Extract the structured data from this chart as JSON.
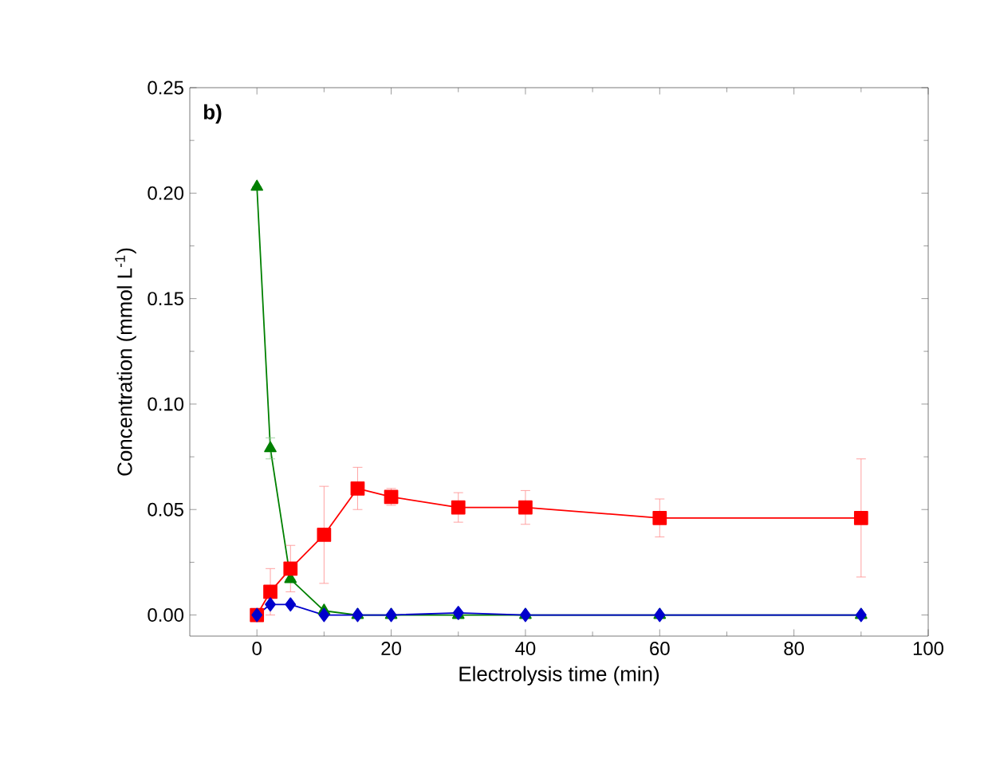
{
  "chart_data": {
    "type": "line",
    "xlabel": "Electrolysis time (min)",
    "ylabel": "Concentration (mmol L$^{-1}$)",
    "annotations": [
      "b)"
    ],
    "x": [
      0,
      2,
      5,
      10,
      15,
      20,
      30,
      40,
      60,
      90
    ],
    "series": [
      {
        "color": "#008000",
        "marker": "triangle",
        "values": [
          0.203,
          0.079,
          0.017,
          0.002,
          0,
          0,
          0,
          0,
          0,
          0
        ],
        "errors": [
          null,
          0.005,
          null,
          null,
          null,
          null,
          null,
          null,
          null,
          null
        ]
      },
      {
        "color": "#ff0000",
        "marker": "square",
        "values": [
          0,
          0.011,
          0.022,
          0.038,
          0.06,
          0.056,
          0.051,
          0.051,
          0.046,
          0.046
        ],
        "errors": [
          null,
          0.011,
          0.011,
          0.023,
          0.01,
          0.004,
          0.007,
          0.008,
          0.009,
          0.028
        ]
      },
      {
        "color": "#0000cc",
        "marker": "diamond",
        "values": [
          0,
          0.005,
          0.005,
          0,
          0,
          0,
          0.001,
          0,
          0,
          0
        ]
      }
    ],
    "xlim": [
      -10,
      100
    ],
    "ylim": [
      -0.01,
      0.25
    ],
    "xticks": [
      0,
      20,
      40,
      60,
      80,
      100
    ],
    "yticks": [
      {
        "value": 0,
        "label": "0.00"
      },
      {
        "value": 0.05,
        "label": "0.05"
      },
      {
        "value": 0.1,
        "label": "0.10"
      },
      {
        "value": 0.15,
        "label": "0.15"
      },
      {
        "value": 0.2,
        "label": "0.20"
      },
      {
        "value": 0.25,
        "label": "0.25"
      }
    ],
    "grid": false
  }
}
